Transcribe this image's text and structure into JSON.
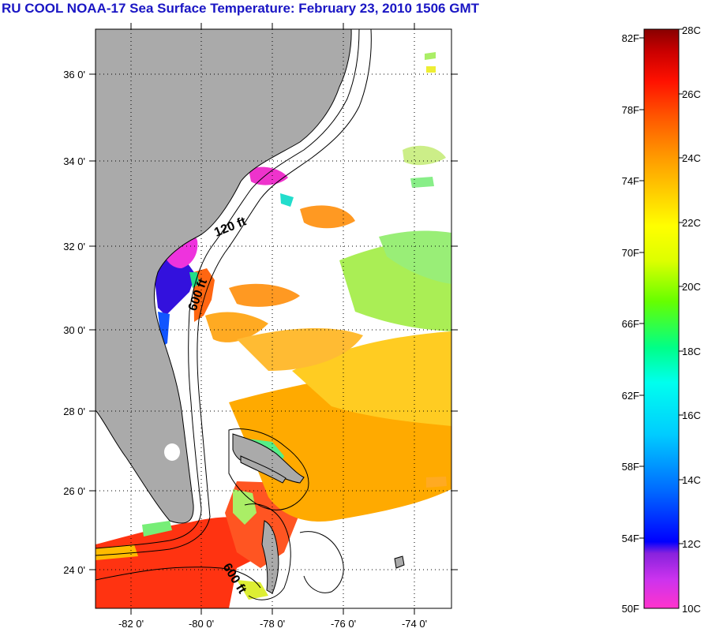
{
  "title": "RU COOL  NOAA-17  Sea Surface Temperature:  February 23, 2010 1506 GMT",
  "map": {
    "lat_labels": [
      "36 0'",
      "34 0'",
      "32 0'",
      "30 0'",
      "28 0'",
      "26 0'",
      "24 0'"
    ],
    "lon_labels": [
      "-82 0'",
      "-80 0'",
      "-78 0'",
      "-76 0'",
      "-74 0'"
    ],
    "contour_labels": [
      "120 ft",
      "600 ft",
      "600 ft"
    ],
    "colors": {
      "land": "#aaaaaa",
      "coast": "#000000",
      "cloud": "#ffffff"
    }
  },
  "colorbar": {
    "fahrenheit_labels": [
      "82F",
      "78F",
      "74F",
      "70F",
      "66F",
      "62F",
      "58F",
      "54F",
      "50F"
    ],
    "celsius_labels": [
      "28C",
      "26C",
      "24C",
      "22C",
      "20C",
      "18C",
      "16C",
      "14C",
      "12C",
      "10C"
    ],
    "stops": [
      "#ff33cc",
      "#cc33ee",
      "#8822dd",
      "#0000ff",
      "#0066ff",
      "#00aaff",
      "#00ffee",
      "#00ff88",
      "#66ff00",
      "#ccff00",
      "#ffff00",
      "#ffcc00",
      "#ff9900",
      "#ff6600",
      "#ff2200",
      "#ee0000",
      "#cc0000",
      "#990000"
    ]
  }
}
